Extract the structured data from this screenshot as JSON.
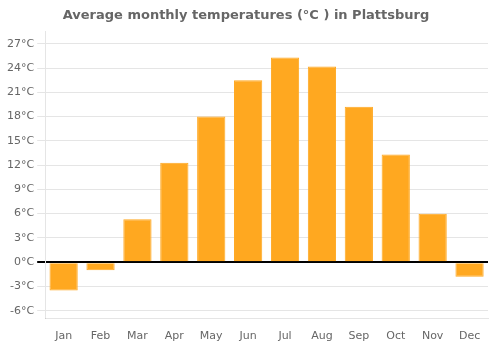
{
  "chart_data": {
    "type": "bar",
    "title": "Average monthly temperatures (°C ) in Plattsburg",
    "categories": [
      "Jan",
      "Feb",
      "Mar",
      "Apr",
      "May",
      "Jun",
      "Jul",
      "Aug",
      "Sep",
      "Oct",
      "Nov",
      "Dec"
    ],
    "values": [
      -3.5,
      -1.0,
      5.3,
      12.3,
      18.0,
      22.5,
      25.3,
      24.2,
      19.2,
      13.3,
      6.0,
      -1.8
    ],
    "color": "#FFA820",
    "ylim": [
      -7,
      28.5
    ],
    "yticks": [
      {
        "value": -6,
        "label": "-6°C"
      },
      {
        "value": -3,
        "label": "-3°C"
      },
      {
        "value": 0,
        "label": "0°C"
      },
      {
        "value": 3,
        "label": "3°C"
      },
      {
        "value": 6,
        "label": "6°C"
      },
      {
        "value": 9,
        "label": "9°C"
      },
      {
        "value": 12,
        "label": "12°C"
      },
      {
        "value": 15,
        "label": "15°C"
      },
      {
        "value": 18,
        "label": "18°C"
      },
      {
        "value": 21,
        "label": "21°C"
      },
      {
        "value": 24,
        "label": "24°C"
      },
      {
        "value": 27,
        "label": "27°C"
      }
    ],
    "grid": true
  }
}
